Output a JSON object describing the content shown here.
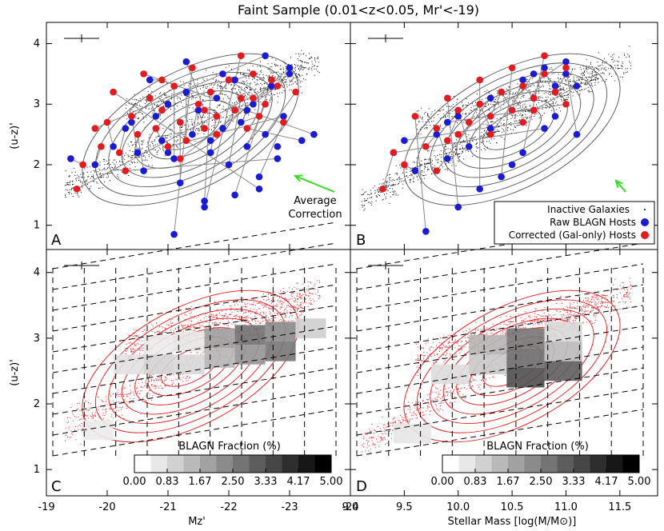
{
  "title": "Faint Sample (0.01<z<0.05, Mr'<-19)",
  "colors": {
    "blue": "#1a1adb",
    "red": "#e8191c",
    "green": "#33dd22",
    "contour": "#555555"
  },
  "chart_data": [
    {
      "panel": "A",
      "type": "scatter",
      "xlabel": "",
      "ylabel": "(u-z)'",
      "xlim": [
        -19,
        -24
      ],
      "ylim": [
        0.6,
        4.35
      ],
      "annotation": {
        "line1": "Average",
        "line2": "Correction"
      },
      "series": [
        {
          "name": "Raw BLAGN Hosts",
          "x": [
            -19.4,
            -19.8,
            -20.1,
            -20.3,
            -20.5,
            -20.6,
            -20.8,
            -20.9,
            -21.0,
            -21.1,
            -21.2,
            -21.3,
            -21.4,
            -21.5,
            -21.6,
            -21.7,
            -21.8,
            -21.9,
            -22.0,
            -22.1,
            -22.2,
            -22.3,
            -22.4,
            -22.5,
            -22.6,
            -22.7,
            -22.8,
            -22.9,
            -23.0,
            -23.2,
            -23.4,
            -21.1,
            -21.6,
            -22.1,
            -22.5,
            -20.7,
            -21.3,
            -21.9,
            -22.6,
            -23.0,
            -20.4,
            -21.0,
            -21.7,
            -22.3,
            -22.8
          ],
          "y": [
            2.1,
            2.0,
            2.3,
            2.6,
            2.2,
            1.9,
            2.8,
            2.4,
            3.0,
            2.1,
            1.7,
            3.2,
            2.5,
            2.9,
            1.4,
            2.2,
            3.1,
            2.6,
            2.0,
            3.4,
            2.7,
            2.3,
            3.0,
            1.8,
            2.5,
            3.3,
            2.1,
            2.8,
            3.6,
            2.4,
            2.5,
            0.85,
            1.3,
            1.5,
            1.6,
            3.4,
            3.7,
            3.5,
            3.8,
            3.5,
            2.7,
            2.2,
            2.4,
            2.9,
            2.3
          ]
        },
        {
          "name": "Corrected (Gal-only) Hosts",
          "x": [
            -19.6,
            -19.9,
            -20.0,
            -20.2,
            -20.4,
            -20.5,
            -20.7,
            -20.8,
            -20.9,
            -21.1,
            -21.2,
            -21.3,
            -21.5,
            -21.6,
            -21.7,
            -21.8,
            -22.0,
            -22.1,
            -22.2,
            -22.4,
            -22.5,
            -22.6,
            -22.8,
            -22.9,
            -23.1,
            -19.5,
            -20.3,
            -21.0,
            -21.8,
            -22.3,
            -20.6,
            -21.4,
            -22.2,
            -22.7,
            -20.1,
            -20.9,
            -21.6,
            -22.4,
            -19.8,
            -21.2
          ],
          "y": [
            2.0,
            2.3,
            2.7,
            2.2,
            2.8,
            2.5,
            3.1,
            2.6,
            2.9,
            3.3,
            2.7,
            2.4,
            3.0,
            2.6,
            3.2,
            2.8,
            3.4,
            2.9,
            3.1,
            3.5,
            2.8,
            3.0,
            3.3,
            2.7,
            3.2,
            1.6,
            1.9,
            2.3,
            2.5,
            2.6,
            3.5,
            3.6,
            3.8,
            3.4,
            3.2,
            3.4,
            2.9,
            3.1,
            2.6,
            2.1
          ]
        }
      ]
    },
    {
      "panel": "B",
      "type": "scatter",
      "xlabel": "",
      "ylabel": "",
      "xlim": [
        9.0,
        11.85
      ],
      "ylim": [
        0.6,
        4.35
      ],
      "legend": {
        "placement": "bottom-right",
        "entries": [
          "Inactive Galaxies",
          "Raw BLAGN Hosts",
          "Corrected (Gal-only) Hosts"
        ]
      },
      "series": [
        {
          "name": "Raw BLAGN Hosts",
          "x": [
            9.4,
            9.6,
            9.8,
            9.9,
            10.0,
            10.1,
            10.2,
            10.3,
            10.4,
            10.5,
            10.6,
            10.7,
            10.8,
            10.9,
            11.0,
            11.1,
            9.7,
            10.0,
            10.2,
            10.4,
            10.6,
            10.8,
            11.0,
            9.5,
            9.9,
            10.3,
            10.7,
            11.1,
            10.5,
            10.9
          ],
          "y": [
            2.2,
            1.9,
            2.5,
            2.1,
            2.8,
            2.3,
            3.0,
            2.6,
            3.2,
            2.9,
            3.4,
            3.1,
            3.6,
            3.3,
            3.5,
            2.5,
            0.9,
            1.3,
            1.6,
            1.8,
            2.2,
            2.6,
            3.7,
            2.4,
            2.7,
            3.1,
            3.5,
            3.3,
            2.0,
            2.8
          ]
        },
        {
          "name": "Corrected (Gal-only) Hosts",
          "x": [
            9.3,
            9.5,
            9.7,
            9.8,
            9.9,
            10.0,
            10.1,
            10.2,
            10.3,
            10.4,
            10.5,
            10.6,
            10.7,
            10.8,
            10.9,
            11.0,
            9.6,
            9.9,
            10.2,
            10.5,
            10.8,
            9.4,
            10.0,
            10.6,
            11.0,
            9.8,
            10.3,
            10.7
          ],
          "y": [
            1.6,
            2.0,
            2.3,
            2.6,
            2.4,
            2.9,
            2.7,
            3.0,
            2.8,
            3.2,
            2.9,
            3.3,
            3.1,
            3.5,
            3.2,
            3.6,
            2.8,
            3.1,
            3.4,
            3.6,
            3.8,
            2.2,
            2.5,
            2.7,
            3.0,
            1.9,
            2.5,
            2.9
          ]
        }
      ]
    },
    {
      "panel": "C",
      "type": "heatmap",
      "xlabel": "Mz'",
      "ylabel": "(u-z)'",
      "xlim": [
        -19,
        -24
      ],
      "ylim": [
        0.6,
        4.35
      ],
      "colorbar": {
        "label": "BLAGN Fraction (%)",
        "ticks": [
          "0.00",
          "0.83",
          "1.67",
          "2.50",
          "3.33",
          "4.17",
          "5.00"
        ],
        "range": [
          0,
          5
        ]
      },
      "x_ticks": [
        "-19",
        "-20",
        "-21",
        "-22",
        "-23",
        "-24"
      ],
      "cells": [
        {
          "x0": -20.1,
          "x1": -20.6,
          "y0": 2.45,
          "y1": 2.75,
          "fraction": 0.4
        },
        {
          "x0": -20.6,
          "x1": -21.1,
          "y0": 2.45,
          "y1": 2.75,
          "fraction": 0.7
        },
        {
          "x0": -21.1,
          "x1": -21.6,
          "y0": 2.45,
          "y1": 2.75,
          "fraction": 0.6
        },
        {
          "x0": -21.6,
          "x1": -22.1,
          "y0": 2.55,
          "y1": 2.85,
          "fraction": 1.3
        },
        {
          "x0": -22.1,
          "x1": -22.6,
          "y0": 2.6,
          "y1": 2.9,
          "fraction": 2.0
        },
        {
          "x0": -22.6,
          "x1": -23.1,
          "y0": 2.65,
          "y1": 2.95,
          "fraction": 2.6
        },
        {
          "x0": -20.6,
          "x1": -21.1,
          "y0": 2.75,
          "y1": 3.05,
          "fraction": 0.2
        },
        {
          "x0": -21.1,
          "x1": -21.6,
          "y0": 2.8,
          "y1": 3.1,
          "fraction": 0.3
        },
        {
          "x0": -21.6,
          "x1": -22.1,
          "y0": 2.85,
          "y1": 3.15,
          "fraction": 1.8
        },
        {
          "x0": -22.1,
          "x1": -22.6,
          "y0": 2.9,
          "y1": 3.2,
          "fraction": 2.7
        },
        {
          "x0": -22.6,
          "x1": -23.1,
          "y0": 2.95,
          "y1": 3.25,
          "fraction": 2.2
        },
        {
          "x0": -23.1,
          "x1": -23.6,
          "y0": 3.0,
          "y1": 3.3,
          "fraction": 0.8
        },
        {
          "x0": -19.6,
          "x1": -20.1,
          "y0": 1.45,
          "y1": 1.75,
          "fraction": 0.2
        }
      ]
    },
    {
      "panel": "D",
      "type": "heatmap",
      "xlabel": "Stellar Mass [log(M/M⊙)]",
      "ylabel": "",
      "xlim": [
        9.0,
        11.85
      ],
      "ylim": [
        0.6,
        4.35
      ],
      "colorbar": {
        "label": "BLAGN Fraction (%)",
        "ticks": [
          "0.00",
          "0.83",
          "1.67",
          "2.50",
          "3.33",
          "4.17",
          "5.00"
        ],
        "range": [
          0,
          5
        ]
      },
      "x_ticks": [
        "9.0",
        "9.5",
        "10.0",
        "10.5",
        "11.0",
        "11.5"
      ],
      "cells": [
        {
          "x0": 9.75,
          "x1": 10.1,
          "y0": 2.3,
          "y1": 2.6,
          "fraction": 0.5
        },
        {
          "x0": 10.1,
          "x1": 10.45,
          "y0": 2.45,
          "y1": 2.75,
          "fraction": 0.9
        },
        {
          "x0": 10.45,
          "x1": 10.8,
          "y0": 2.55,
          "y1": 2.85,
          "fraction": 2.8
        },
        {
          "x0": 10.8,
          "x1": 11.15,
          "y0": 2.65,
          "y1": 2.95,
          "fraction": 1.2
        },
        {
          "x0": 10.1,
          "x1": 10.45,
          "y0": 2.75,
          "y1": 3.05,
          "fraction": 1.3
        },
        {
          "x0": 10.45,
          "x1": 10.8,
          "y0": 2.85,
          "y1": 3.15,
          "fraction": 2.6
        },
        {
          "x0": 10.8,
          "x1": 11.15,
          "y0": 2.95,
          "y1": 3.25,
          "fraction": 0.6
        },
        {
          "x0": 10.45,
          "x1": 10.8,
          "y0": 2.25,
          "y1": 2.55,
          "fraction": 3.4
        },
        {
          "x0": 10.8,
          "x1": 11.15,
          "y0": 2.35,
          "y1": 2.65,
          "fraction": 3.1
        },
        {
          "x0": 9.4,
          "x1": 9.75,
          "y0": 1.4,
          "y1": 1.7,
          "fraction": 0.3
        }
      ]
    }
  ],
  "y_ticks": [
    "1",
    "2",
    "3",
    "4"
  ],
  "panel_labels": {
    "a": "A",
    "b": "B",
    "c": "C",
    "d": "D"
  },
  "legend": {
    "inactive": "Inactive Galaxies",
    "raw": "Raw BLAGN Hosts",
    "corrected": "Corrected (Gal-only) Hosts"
  }
}
